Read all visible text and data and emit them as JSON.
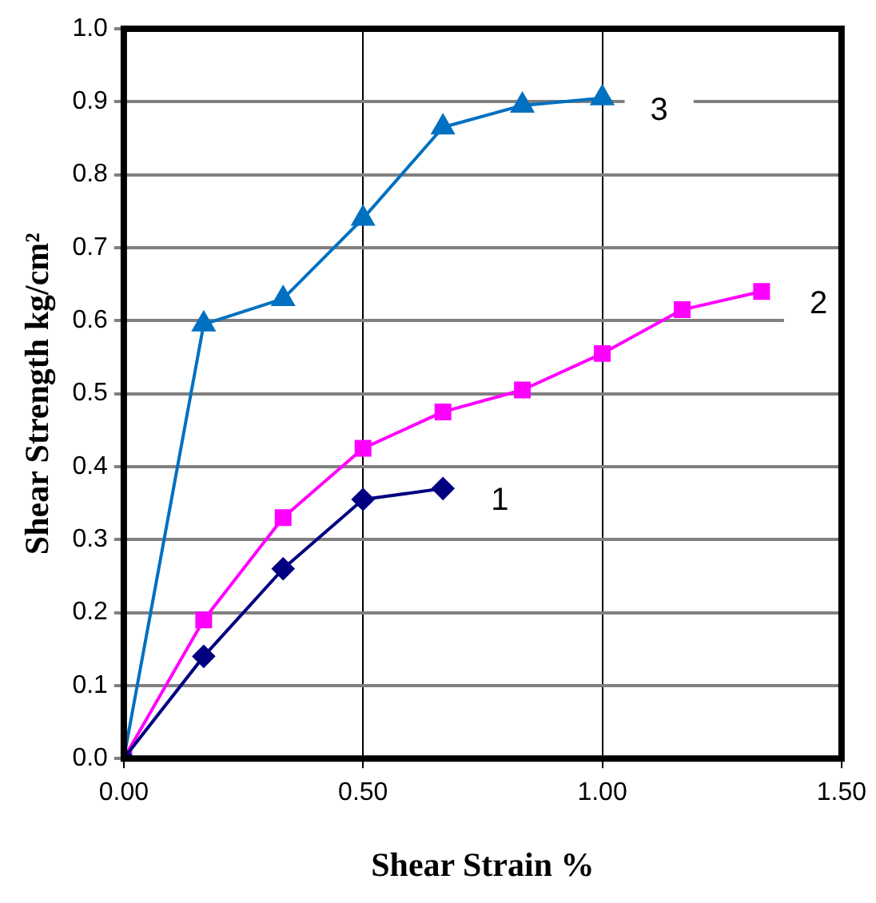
{
  "chart_data": {
    "type": "line",
    "xlabel": "Shear Strain %",
    "ylabel": "Shear Strength kg/cm²",
    "xlim": [
      0,
      1.5
    ],
    "xticks": [
      {
        "value": 0,
        "label": "0.00"
      },
      {
        "value": 0.5,
        "label": "0.50"
      },
      {
        "value": 1,
        "label": "1.00"
      },
      {
        "value": 1.5,
        "label": "1.50"
      }
    ],
    "ylim": [
      0,
      1
    ],
    "yticks": [
      {
        "value": 0,
        "label": "0.0"
      },
      {
        "value": 0.1,
        "label": "0.1"
      },
      {
        "value": 0.2,
        "label": "0.2"
      },
      {
        "value": 0.3,
        "label": "0.3"
      },
      {
        "value": 0.4,
        "label": "0.4"
      },
      {
        "value": 0.5,
        "label": "0.5"
      },
      {
        "value": 0.6,
        "label": "0.6"
      },
      {
        "value": 0.7,
        "label": "0.7"
      },
      {
        "value": 0.8,
        "label": "0.8"
      },
      {
        "value": 0.9,
        "label": "0.9"
      },
      {
        "value": 1,
        "label": "1.0"
      }
    ],
    "grid": true,
    "legend": false,
    "line_style": "solid",
    "series": [
      {
        "name": "1",
        "color": "#000080",
        "marker": "diamond",
        "x": [
          0,
          0.167,
          0.333,
          0.5,
          0.667
        ],
        "values": [
          0,
          0.14,
          0.26,
          0.355,
          0.37
        ]
      },
      {
        "name": "2",
        "color": "#ff00ff",
        "marker": "square",
        "x": [
          0,
          0.167,
          0.333,
          0.5,
          0.667,
          0.833,
          1.0,
          1.167,
          1.333
        ],
        "values": [
          0,
          0.19,
          0.33,
          0.425,
          0.475,
          0.505,
          0.555,
          0.615,
          0.64
        ]
      },
      {
        "name": "3",
        "color": "#0070c0",
        "marker": "triangle",
        "x": [
          0,
          0.167,
          0.333,
          0.5,
          0.667,
          0.833,
          1.0
        ],
        "values": [
          0,
          0.595,
          0.63,
          0.74,
          0.865,
          0.895,
          0.905
        ]
      }
    ]
  }
}
